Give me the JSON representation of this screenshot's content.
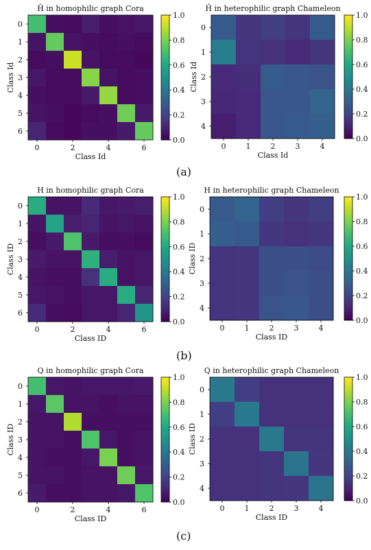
{
  "captions": [
    "(a)",
    "(b)",
    "(c)"
  ],
  "colormap": [
    "#440154",
    "#482475",
    "#414487",
    "#355f8d",
    "#2a788e",
    "#21918c",
    "#22a884",
    "#44bf70",
    "#7ad151",
    "#bddf26",
    "#fde725"
  ],
  "chart_data": [
    {
      "type": "heatmap",
      "title": "H̄ in homophilic graph Cora",
      "xlabel": "Class Id",
      "ylabel": "Class Id",
      "ticks": [
        "0",
        "1",
        "2",
        "3",
        "4",
        "5",
        "6"
      ],
      "colorbar_ticks": [
        "0.0",
        "0.2",
        "0.4",
        "0.6",
        "0.8",
        "1.0"
      ],
      "vmin": 0,
      "vmax": 1,
      "values": [
        [
          0.7,
          0.04,
          0.03,
          0.08,
          0.04,
          0.05,
          0.06
        ],
        [
          0.05,
          0.76,
          0.05,
          0.04,
          0.03,
          0.04,
          0.03
        ],
        [
          0.03,
          0.04,
          0.92,
          0.05,
          0.03,
          0.03,
          0.02
        ],
        [
          0.06,
          0.03,
          0.03,
          0.82,
          0.05,
          0.03,
          0.04
        ],
        [
          0.04,
          0.03,
          0.03,
          0.07,
          0.84,
          0.03,
          0.04
        ],
        [
          0.05,
          0.04,
          0.02,
          0.03,
          0.04,
          0.78,
          0.07
        ],
        [
          0.1,
          0.03,
          0.02,
          0.04,
          0.04,
          0.07,
          0.76
        ]
      ]
    },
    {
      "type": "heatmap",
      "title": "H̄ in heterophilic graph Chameleon",
      "xlabel": "Class Id",
      "ylabel": "Class Id",
      "ticks": [
        "0",
        "1",
        "2",
        "3",
        "4"
      ],
      "colorbar_ticks": [
        "0.0",
        "0.2",
        "0.4",
        "0.6",
        "0.8",
        "1.0"
      ],
      "vmin": 0,
      "vmax": 1,
      "values": [
        [
          0.28,
          0.16,
          0.18,
          0.15,
          0.28
        ],
        [
          0.42,
          0.15,
          0.14,
          0.12,
          0.16
        ],
        [
          0.12,
          0.13,
          0.28,
          0.27,
          0.26
        ],
        [
          0.11,
          0.12,
          0.27,
          0.27,
          0.32
        ],
        [
          0.08,
          0.12,
          0.27,
          0.28,
          0.3
        ]
      ]
    },
    {
      "type": "heatmap",
      "title": "H in homophilic graph Cora",
      "xlabel": "Class ID",
      "ylabel": "Class ID",
      "ticks": [
        "0",
        "1",
        "2",
        "3",
        "4",
        "5",
        "6"
      ],
      "colorbar_ticks": [
        "0.0",
        "0.2",
        "0.4",
        "0.6",
        "0.8",
        "1.0"
      ],
      "vmin": 0,
      "vmax": 1,
      "values": [
        [
          0.62,
          0.05,
          0.05,
          0.12,
          0.06,
          0.07,
          0.08
        ],
        [
          0.05,
          0.58,
          0.08,
          0.1,
          0.05,
          0.06,
          0.05
        ],
        [
          0.04,
          0.07,
          0.72,
          0.07,
          0.04,
          0.04,
          0.03
        ],
        [
          0.07,
          0.05,
          0.05,
          0.64,
          0.08,
          0.05,
          0.06
        ],
        [
          0.05,
          0.04,
          0.04,
          0.14,
          0.62,
          0.05,
          0.06
        ],
        [
          0.06,
          0.05,
          0.04,
          0.06,
          0.06,
          0.62,
          0.1
        ],
        [
          0.12,
          0.04,
          0.03,
          0.06,
          0.06,
          0.1,
          0.52
        ]
      ]
    },
    {
      "type": "heatmap",
      "title": "H in heterophilic graph Chameleon",
      "xlabel": "Class ID",
      "ylabel": "Class ID",
      "ticks": [
        "0",
        "1",
        "2",
        "3",
        "4"
      ],
      "colorbar_ticks": [
        "0.0",
        "0.2",
        "0.4",
        "0.6",
        "0.8",
        "1.0"
      ],
      "vmin": 0,
      "vmax": 1,
      "values": [
        [
          0.28,
          0.32,
          0.18,
          0.16,
          0.18
        ],
        [
          0.3,
          0.28,
          0.16,
          0.14,
          0.16
        ],
        [
          0.15,
          0.16,
          0.24,
          0.24,
          0.23
        ],
        [
          0.15,
          0.16,
          0.24,
          0.25,
          0.24
        ],
        [
          0.15,
          0.16,
          0.26,
          0.27,
          0.24
        ]
      ]
    },
    {
      "type": "heatmap",
      "title": "Q in homophilic graph Cora",
      "xlabel": "Class ID",
      "ylabel": "Class ID",
      "ticks": [
        "0",
        "1",
        "2",
        "3",
        "4",
        "5",
        "6"
      ],
      "colorbar_ticks": [
        "0.0",
        "0.2",
        "0.4",
        "0.6",
        "0.8",
        "1.0"
      ],
      "vmin": 0,
      "vmax": 1,
      "values": [
        [
          0.7,
          0.06,
          0.05,
          0.06,
          0.06,
          0.06,
          0.07
        ],
        [
          0.06,
          0.74,
          0.05,
          0.05,
          0.04,
          0.05,
          0.05
        ],
        [
          0.05,
          0.05,
          0.88,
          0.04,
          0.04,
          0.04,
          0.04
        ],
        [
          0.05,
          0.05,
          0.04,
          0.72,
          0.06,
          0.04,
          0.05
        ],
        [
          0.05,
          0.04,
          0.04,
          0.06,
          0.8,
          0.04,
          0.05
        ],
        [
          0.05,
          0.05,
          0.04,
          0.05,
          0.05,
          0.78,
          0.06
        ],
        [
          0.07,
          0.04,
          0.04,
          0.05,
          0.05,
          0.06,
          0.72
        ]
      ]
    },
    {
      "type": "heatmap",
      "title": "Q in heterophilic graph Chameleon",
      "xlabel": "Class ID",
      "ylabel": "Class ID",
      "ticks": [
        "0",
        "1",
        "2",
        "3",
        "4"
      ],
      "colorbar_ticks": [
        "0.0",
        "0.2",
        "0.4",
        "0.6",
        "0.8",
        "1.0"
      ],
      "vmin": 0,
      "vmax": 1,
      "values": [
        [
          0.4,
          0.18,
          0.14,
          0.14,
          0.14
        ],
        [
          0.18,
          0.4,
          0.14,
          0.14,
          0.14
        ],
        [
          0.14,
          0.14,
          0.4,
          0.15,
          0.15
        ],
        [
          0.14,
          0.14,
          0.15,
          0.38,
          0.16
        ],
        [
          0.14,
          0.14,
          0.15,
          0.16,
          0.38
        ]
      ]
    }
  ]
}
